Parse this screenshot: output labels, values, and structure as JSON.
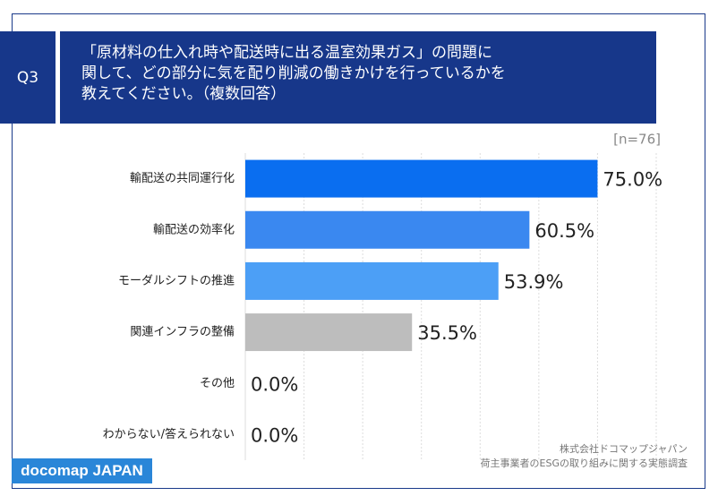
{
  "header": {
    "label": "Q3",
    "question": [
      "「原材料の仕入れ時や配送時に出る温室効果ガス」の問題に",
      "関して、どの部分に気を配り削減の働きかけを行っているかを",
      "教えてください。（複数回答）"
    ]
  },
  "chart_data": {
    "type": "bar",
    "orientation": "horizontal",
    "note": "[n=76]",
    "categories": [
      "輸配送の共同運行化",
      "輸配送の効率化",
      "モーダルシフトの推進",
      "関連インフラの整備",
      "その他",
      "わからない/答えられない"
    ],
    "values": [
      75.0,
      60.5,
      53.9,
      35.5,
      0.0,
      0.0
    ],
    "value_labels": [
      "75.0%",
      "60.5%",
      "53.9%",
      "35.5%",
      "0.0%",
      "0.0%"
    ],
    "colors": [
      "#0a6ef0",
      "#3a88f0",
      "#4c9ff6",
      "#bdbdbd",
      "#bdbdbd",
      "#bdbdbd"
    ],
    "xlim": [
      0,
      87.5
    ],
    "grid": true
  },
  "footer": {
    "logo": "docomap JAPAN",
    "source": [
      "株式会社ドコマップジャパン",
      "荷主事業者のESGの取り組みに関する実態調査"
    ]
  }
}
